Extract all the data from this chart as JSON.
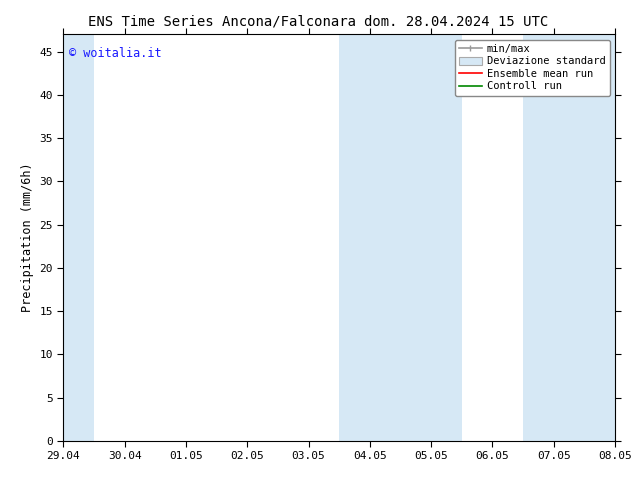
{
  "title_left": "ENS Time Series Ancona/Falconara",
  "title_right": "dom. 28.04.2024 15 UTC",
  "ylabel": "Precipitation (mm/6h)",
  "watermark": "© woitalia.it",
  "watermark_color": "#1a1aff",
  "xticklabels": [
    "29.04",
    "30.04",
    "01.05",
    "02.05",
    "03.05",
    "04.05",
    "05.05",
    "06.05",
    "07.05",
    "08.05"
  ],
  "xlim": [
    0,
    9
  ],
  "ylim": [
    0,
    47
  ],
  "yticks": [
    0,
    5,
    10,
    15,
    20,
    25,
    30,
    35,
    40,
    45
  ],
  "bg_color": "#ffffff",
  "plot_bg_color": "#ffffff",
  "shaded_regions": [
    {
      "xstart": -0.5,
      "xend": 0.5,
      "color": "#d6e8f5"
    },
    {
      "xstart": 4.5,
      "xend": 6.5,
      "color": "#d6e8f5"
    },
    {
      "xstart": 7.5,
      "xend": 9.5,
      "color": "#d6e8f5"
    }
  ],
  "legend_entries": [
    {
      "label": "min/max",
      "color": "#999999",
      "lw": 1.2,
      "ls": "-",
      "type": "line_bar"
    },
    {
      "label": "Deviazione standard",
      "color": "#d6e8f5",
      "edge": "#aaaaaa",
      "type": "patch"
    },
    {
      "label": "Ensemble mean run",
      "color": "#ff0000",
      "lw": 1.2,
      "ls": "-",
      "type": "line"
    },
    {
      "label": "Controll run",
      "color": "#008800",
      "lw": 1.2,
      "ls": "-",
      "type": "line"
    }
  ],
  "title_fontsize": 10,
  "tick_fontsize": 8,
  "ylabel_fontsize": 8.5,
  "legend_fontsize": 7.5
}
